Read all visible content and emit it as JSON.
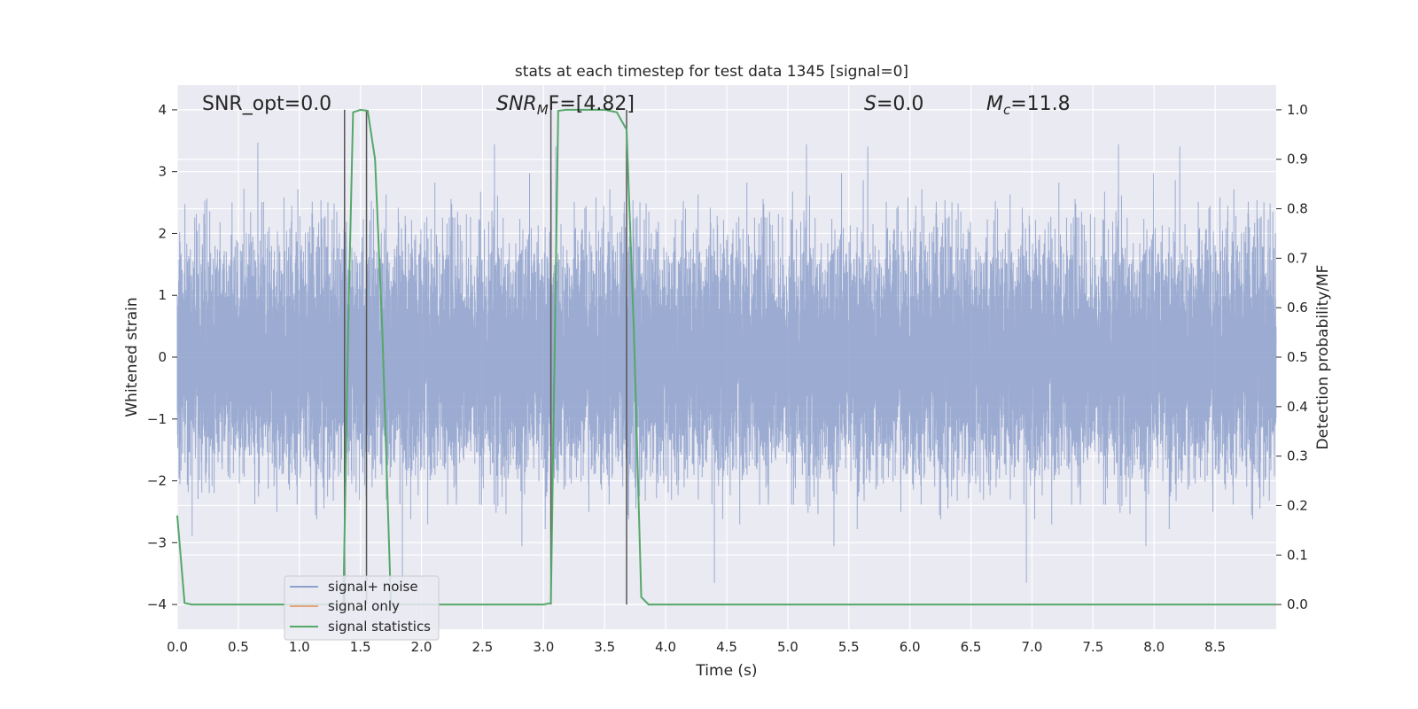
{
  "chart_data": {
    "type": "line",
    "title": "stats at each timestep for test data 1345 [signal=0]",
    "xlabel": "Time (s)",
    "ylabel": "Whitened strain",
    "y2label": "Detection probability/MF",
    "xlim": [
      0.0,
      9.0
    ],
    "ylim": [
      -4.4,
      4.4
    ],
    "y2lim": [
      -0.05,
      1.05
    ],
    "xticks": [
      "0.0",
      "0.5",
      "1.0",
      "1.5",
      "2.0",
      "2.5",
      "3.0",
      "3.5",
      "4.0",
      "4.5",
      "5.0",
      "5.5",
      "6.0",
      "6.5",
      "7.0",
      "7.5",
      "8.0",
      "8.5"
    ],
    "yticks": [
      "4",
      "3",
      "2",
      "1",
      "0",
      "−1",
      "−2",
      "−3",
      "−4"
    ],
    "y2ticks": [
      "1.0",
      "0.9",
      "0.8",
      "0.7",
      "0.6",
      "0.5",
      "0.4",
      "0.3",
      "0.2",
      "0.1",
      "0.0"
    ],
    "grid": true,
    "legend_position": "lower-left",
    "annotations": {
      "snr_opt": "SNR_opt=0.0",
      "snr_mf_base": "SNR",
      "snr_mf_sub": "M",
      "snr_mf_tail": "F=[4.82]",
      "s_base": "S",
      "s_tail": "=0.0",
      "mc_base": "M",
      "mc_sub": "c",
      "mc_tail": "=11.8"
    },
    "vertical_markers_s": [
      1.37,
      1.55,
      3.06,
      3.68
    ],
    "series": [
      {
        "name": "signal+ noise",
        "color": "#8da0cb",
        "kind": "noise",
        "std": 0.9,
        "sample_rate_hz": 2048,
        "range_y": [
          -3.65,
          3.95
        ]
      },
      {
        "name": "signal only",
        "color": "#e8a27c",
        "values": []
      },
      {
        "name": "signal statistics",
        "color": "#55a868",
        "axis": "right",
        "x": [
          0.0,
          0.06,
          0.12,
          0.18,
          0.5,
          1.0,
          1.3,
          1.36,
          1.4,
          1.44,
          1.5,
          1.56,
          1.62,
          1.68,
          1.75,
          2.0,
          2.5,
          3.0,
          3.06,
          3.12,
          3.18,
          3.3,
          3.5,
          3.6,
          3.68,
          3.74,
          3.8,
          3.86,
          3.92,
          4.5,
          6.0,
          8.0,
          9.0
        ],
        "values": [
          0.18,
          0.003,
          0.0,
          0.0,
          0.0,
          0.0,
          0.0,
          0.0,
          0.56,
          0.995,
          1.0,
          0.998,
          0.9,
          0.55,
          0.0,
          0.0,
          0.0,
          0.0,
          0.003,
          0.998,
          1.0,
          1.0,
          1.0,
          0.995,
          0.96,
          0.55,
          0.015,
          0.0,
          0.0,
          0.0,
          0.0,
          0.0,
          0.0
        ]
      }
    ]
  }
}
